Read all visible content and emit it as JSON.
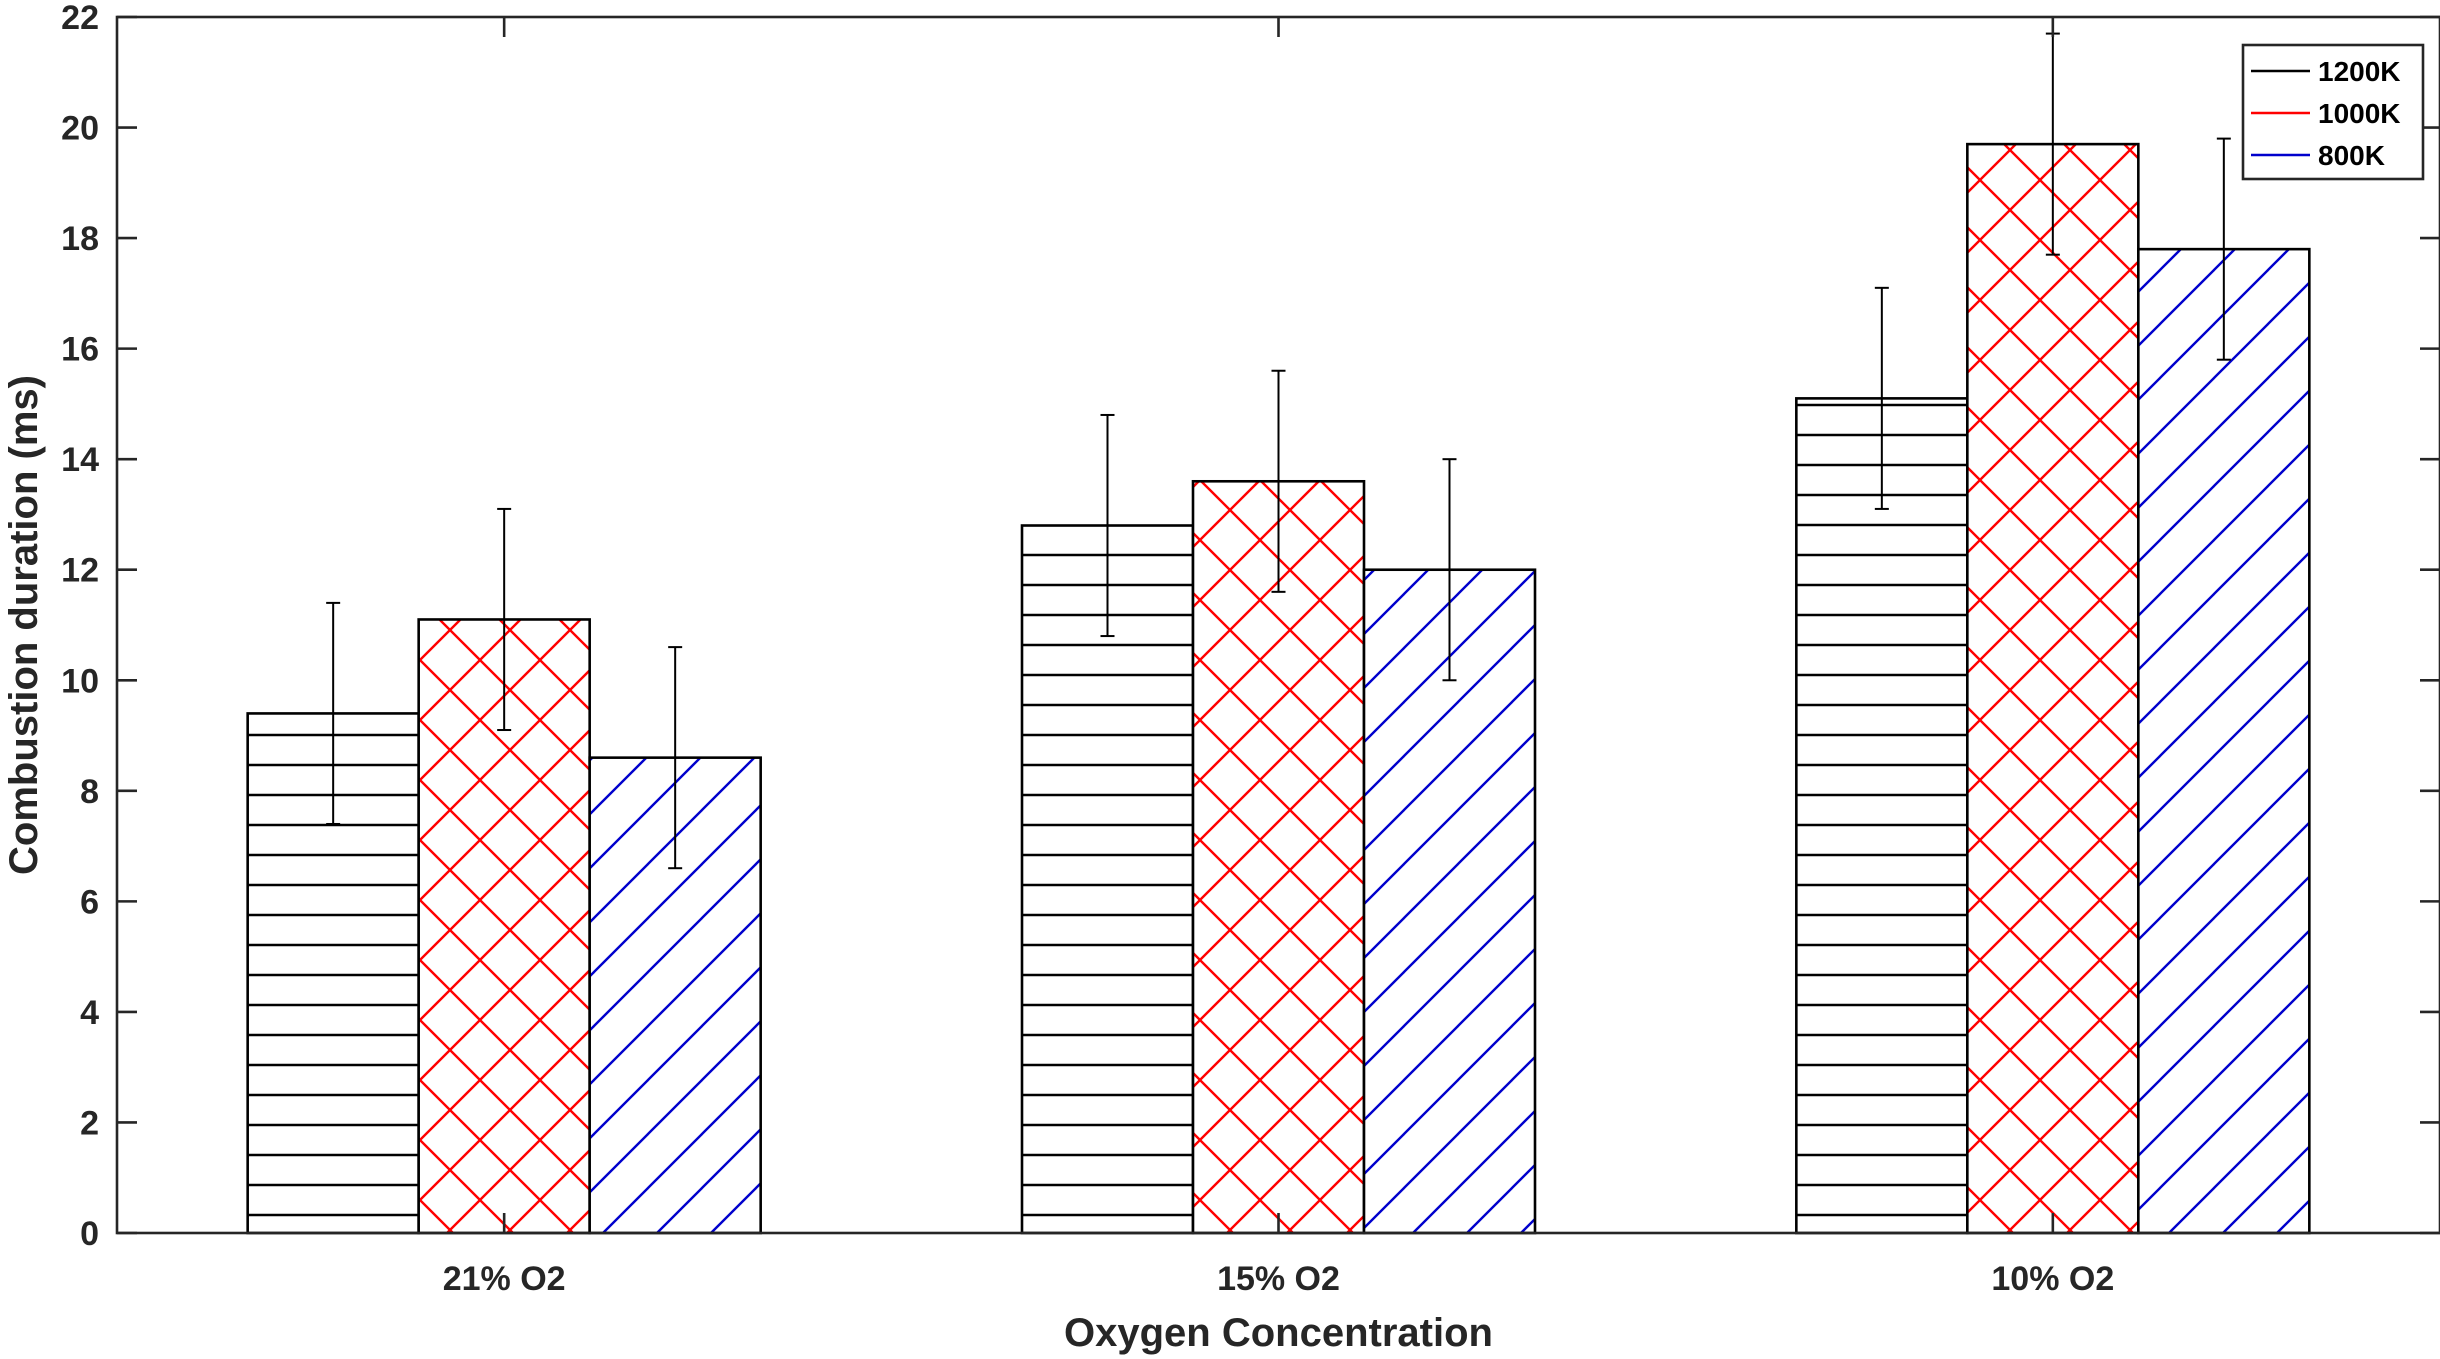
{
  "chart_data": {
    "type": "bar",
    "xlabel": "Oxygen Concentration",
    "ylabel": "Combustion duration (ms)",
    "categories": [
      "21% O2",
      "15% O2",
      "10% O2"
    ],
    "ylim": [
      0,
      22
    ],
    "yticks": [
      0,
      2,
      4,
      6,
      8,
      10,
      12,
      14,
      16,
      18,
      20,
      22
    ],
    "grid": false,
    "legend_position": "top-right",
    "series": [
      {
        "name": "1200K",
        "color": "#000000",
        "pattern": "horizontal-lines",
        "values": [
          9.4,
          12.8,
          15.1
        ],
        "error": [
          2.0,
          2.0,
          2.0
        ]
      },
      {
        "name": "1000K",
        "color": "#ff0000",
        "pattern": "crosshatch",
        "values": [
          11.1,
          13.6,
          19.7
        ],
        "error": [
          2.0,
          2.0,
          2.0
        ]
      },
      {
        "name": "800K",
        "color": "#0000cc",
        "pattern": "diagonal-lines",
        "values": [
          8.6,
          12.0,
          17.8
        ],
        "error": [
          2.0,
          2.0,
          2.0
        ]
      }
    ]
  }
}
